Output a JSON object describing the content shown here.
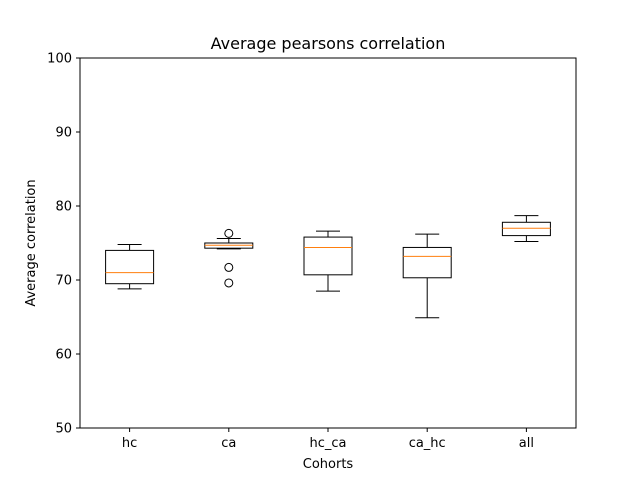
{
  "chart_data": {
    "type": "box",
    "title": "Average pearsons correlation",
    "xlabel": "Cohorts",
    "ylabel": "Average correlation",
    "ylim": [
      50,
      100
    ],
    "yticks": [
      50,
      60,
      70,
      80,
      90,
      100
    ],
    "grid": false,
    "categories": [
      "hc",
      "ca",
      "hc_ca",
      "ca_hc",
      "all"
    ],
    "boxes": [
      {
        "category": "hc",
        "whisker_low": 68.8,
        "q1": 69.5,
        "median": 71.0,
        "q3": 74.0,
        "whisker_high": 74.8,
        "outliers": []
      },
      {
        "category": "ca",
        "whisker_low": 74.2,
        "q1": 74.3,
        "median": 74.7,
        "q3": 75.0,
        "whisker_high": 75.6,
        "outliers": [
          76.3,
          71.7,
          69.6
        ]
      },
      {
        "category": "hc_ca",
        "whisker_low": 68.5,
        "q1": 70.7,
        "median": 74.4,
        "q3": 75.8,
        "whisker_high": 76.6,
        "outliers": []
      },
      {
        "category": "ca_hc",
        "whisker_low": 64.9,
        "q1": 70.3,
        "median": 73.2,
        "q3": 74.4,
        "whisker_high": 76.2,
        "outliers": []
      },
      {
        "category": "all",
        "whisker_low": 75.2,
        "q1": 76.0,
        "median": 77.0,
        "q3": 77.8,
        "whisker_high": 78.7,
        "outliers": []
      }
    ],
    "colors": {
      "box": "#000000",
      "median": "#ff7f0e"
    }
  }
}
